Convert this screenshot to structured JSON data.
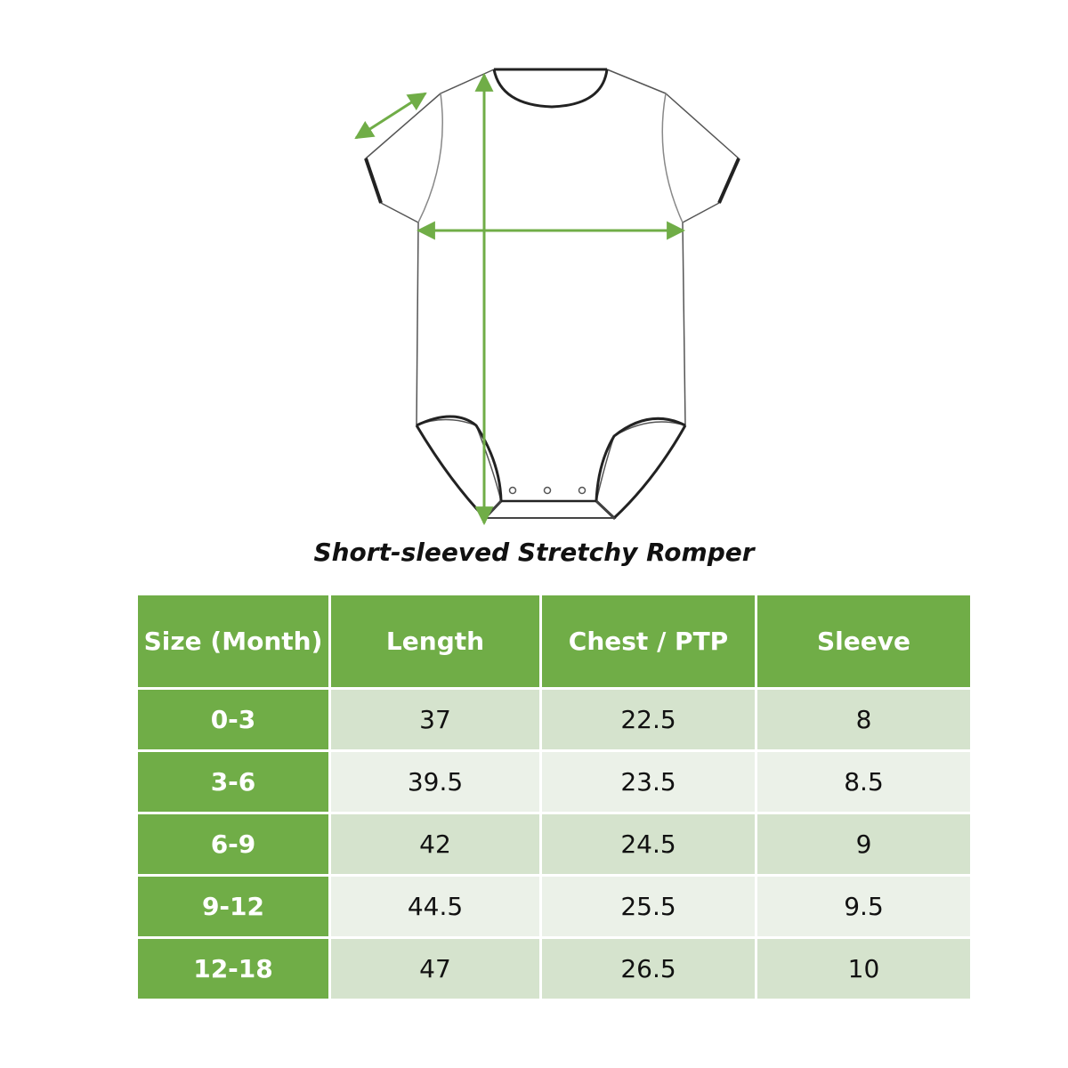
{
  "caption": "Short-sleeved Stretchy Romper",
  "colors": {
    "accent_green": "#70ad47",
    "row_band_dark": "#d5e3cd",
    "row_band_light": "#ebf1e8",
    "measure_arrow": "#70ad47",
    "outline": "#222222"
  },
  "illustration": {
    "subject": "romper-outline",
    "measure_arrows": [
      "sleeve-arrow",
      "length-arrow",
      "chest-arrow"
    ]
  },
  "table": {
    "headers": [
      "Size (Month)",
      "Length",
      "Chest / PTP",
      "Sleeve"
    ],
    "rows": [
      [
        "0-3",
        "37",
        "22.5",
        "8"
      ],
      [
        "3-6",
        "39.5",
        "23.5",
        "8.5"
      ],
      [
        "6-9",
        "42",
        "24.5",
        "9"
      ],
      [
        "9-12",
        "44.5",
        "25.5",
        "9.5"
      ],
      [
        "12-18",
        "47",
        "26.5",
        "10"
      ]
    ]
  }
}
